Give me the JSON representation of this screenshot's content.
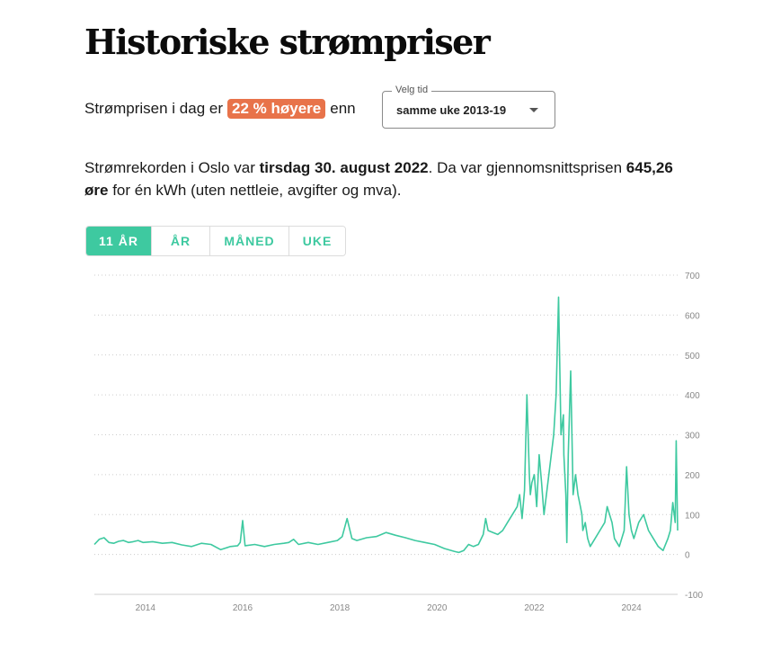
{
  "title": "Historiske strømpriser",
  "compare": {
    "prefix": "Strømprisen i dag er",
    "badge": "22 % høyere",
    "suffix": "enn"
  },
  "period_select": {
    "legend": "Velg tid",
    "value": "samme uke 2013-19"
  },
  "record": {
    "part1": "Strømrekorden i Oslo var ",
    "date": "tirsdag 30. august 2022",
    "part2": ". Da var gjennomsnittsprisen ",
    "price": "645,26 øre",
    "part3": " for én kWh (uten nettleie, avgifter og mva)."
  },
  "tabs": [
    {
      "label": "11 ÅR",
      "active": true
    },
    {
      "label": "ÅR",
      "active": false
    },
    {
      "label": "MÅNED",
      "active": false
    },
    {
      "label": "UKE",
      "active": false
    }
  ],
  "colors": {
    "line": "#3ec9a0",
    "badge": "#e8734a",
    "grid": "#cccccc"
  },
  "chart_data": {
    "type": "line",
    "ylim": [
      -100,
      700
    ],
    "yticks": [
      -100,
      0,
      100,
      200,
      300,
      400,
      500,
      600,
      700
    ],
    "xlim": [
      2013.0,
      2025.0
    ],
    "xticks": [
      2014,
      2016,
      2018,
      2020,
      2022,
      2024
    ],
    "grid": true,
    "series": [
      {
        "x": [
          2013.0,
          2013.1,
          2013.2,
          2013.3,
          2013.4,
          2013.5,
          2013.6,
          2013.7,
          2013.8,
          2013.9,
          2014.0,
          2014.2,
          2014.4,
          2014.6,
          2014.8,
          2015.0,
          2015.2,
          2015.4,
          2015.6,
          2015.8,
          2015.95,
          2016.0,
          2016.05,
          2016.1,
          2016.3,
          2016.5,
          2016.7,
          2016.9,
          2017.0,
          2017.1,
          2017.2,
          2017.4,
          2017.6,
          2017.8,
          2018.0,
          2018.1,
          2018.2,
          2018.3,
          2018.4,
          2018.6,
          2018.8,
          2019.0,
          2019.2,
          2019.4,
          2019.6,
          2019.8,
          2020.0,
          2020.2,
          2020.4,
          2020.5,
          2020.6,
          2020.7,
          2020.8,
          2020.9,
          2021.0,
          2021.05,
          2021.1,
          2021.2,
          2021.3,
          2021.4,
          2021.5,
          2021.6,
          2021.7,
          2021.75,
          2021.8,
          2021.85,
          2021.9,
          2021.95,
          2021.97,
          2022.0,
          2022.05,
          2022.1,
          2022.15,
          2022.2,
          2022.25,
          2022.3,
          2022.35,
          2022.4,
          2022.45,
          2022.5,
          2022.55,
          2022.6,
          2022.65,
          2022.66,
          2022.7,
          2022.72,
          2022.75,
          2022.8,
          2022.85,
          2022.9,
          2022.95,
          2023.0,
          2023.03,
          2023.05,
          2023.1,
          2023.15,
          2023.2,
          2023.3,
          2023.4,
          2023.5,
          2023.55,
          2023.6,
          2023.65,
          2023.7,
          2023.8,
          2023.9,
          2023.95,
          2024.0,
          2024.05,
          2024.1,
          2024.2,
          2024.3,
          2024.4,
          2024.5,
          2024.6,
          2024.7,
          2024.8,
          2024.85,
          2024.9,
          2024.95,
          2024.97,
          2025.0
        ],
        "y": [
          25,
          38,
          42,
          30,
          28,
          33,
          35,
          30,
          32,
          35,
          30,
          32,
          28,
          30,
          24,
          20,
          28,
          25,
          12,
          20,
          22,
          30,
          85,
          22,
          25,
          20,
          25,
          28,
          30,
          38,
          25,
          30,
          25,
          30,
          35,
          45,
          90,
          40,
          35,
          42,
          45,
          55,
          48,
          42,
          35,
          30,
          25,
          15,
          8,
          5,
          10,
          25,
          20,
          25,
          50,
          90,
          60,
          55,
          50,
          60,
          80,
          100,
          120,
          150,
          90,
          160,
          400,
          200,
          150,
          180,
          200,
          120,
          250,
          180,
          100,
          150,
          200,
          250,
          300,
          400,
          645,
          300,
          350,
          250,
          150,
          30,
          250,
          460,
          150,
          200,
          150,
          120,
          100,
          60,
          80,
          40,
          20,
          40,
          60,
          80,
          120,
          100,
          80,
          40,
          20,
          60,
          220,
          100,
          60,
          40,
          80,
          100,
          60,
          40,
          20,
          10,
          40,
          60,
          130,
          80,
          285,
          60
        ]
      }
    ]
  }
}
